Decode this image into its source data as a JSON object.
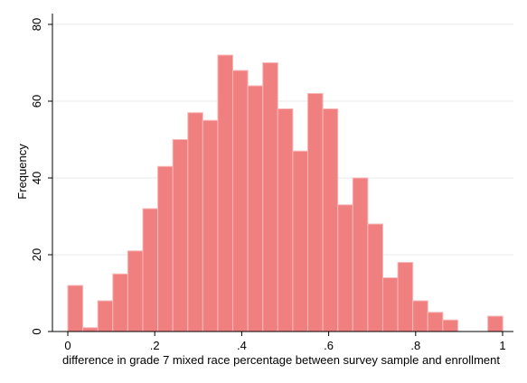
{
  "chart_data": {
    "type": "bar",
    "title": "",
    "xlabel": "difference in grade 7 mixed race percentage between survey sample and enrollment",
    "ylabel": "Frequency",
    "xlim": [
      0,
      1
    ],
    "ylim": [
      0,
      80
    ],
    "xticks": [
      0,
      0.2,
      0.4,
      0.6,
      0.8,
      1
    ],
    "xtick_labels": [
      "0",
      ".2",
      ".4",
      ".6",
      ".8",
      "1"
    ],
    "yticks": [
      0,
      20,
      40,
      60,
      80
    ],
    "ytick_labels": [
      "0",
      "20",
      "40",
      "60",
      "80"
    ],
    "grid": true,
    "legend": "none",
    "bar_color": "#f08080",
    "bar_edge_color": "#f7b8b8",
    "bin_width": 0.0345,
    "bins": [
      {
        "x0": 0.0,
        "value": 12
      },
      {
        "x0": 0.0345,
        "value": 1
      },
      {
        "x0": 0.069,
        "value": 8
      },
      {
        "x0": 0.1035,
        "value": 15
      },
      {
        "x0": 0.138,
        "value": 21
      },
      {
        "x0": 0.1725,
        "value": 32
      },
      {
        "x0": 0.207,
        "value": 43
      },
      {
        "x0": 0.2415,
        "value": 50
      },
      {
        "x0": 0.276,
        "value": 57
      },
      {
        "x0": 0.3105,
        "value": 55
      },
      {
        "x0": 0.345,
        "value": 72
      },
      {
        "x0": 0.3795,
        "value": 68
      },
      {
        "x0": 0.414,
        "value": 64
      },
      {
        "x0": 0.4485,
        "value": 70
      },
      {
        "x0": 0.483,
        "value": 58
      },
      {
        "x0": 0.5175,
        "value": 47
      },
      {
        "x0": 0.552,
        "value": 62
      },
      {
        "x0": 0.5865,
        "value": 58
      },
      {
        "x0": 0.621,
        "value": 33
      },
      {
        "x0": 0.6555,
        "value": 40
      },
      {
        "x0": 0.69,
        "value": 28
      },
      {
        "x0": 0.7245,
        "value": 14
      },
      {
        "x0": 0.759,
        "value": 18
      },
      {
        "x0": 0.7935,
        "value": 8
      },
      {
        "x0": 0.828,
        "value": 5
      },
      {
        "x0": 0.8625,
        "value": 3
      },
      {
        "x0": 0.966,
        "value": 4
      }
    ]
  }
}
